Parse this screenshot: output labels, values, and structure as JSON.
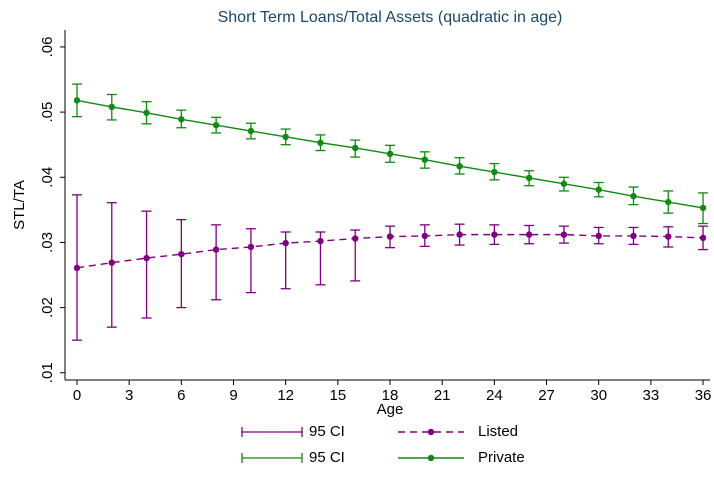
{
  "chart_data": {
    "type": "line",
    "title": "Short Term Loans/Total Assets (quadratic in age)",
    "x_label": "Age",
    "y_label": "STL/TA",
    "x": [
      0,
      2,
      4,
      6,
      8,
      10,
      12,
      14,
      16,
      18,
      20,
      22,
      24,
      26,
      28,
      30,
      32,
      34,
      36
    ],
    "xlim": [
      -0.69,
      36.4
    ],
    "xticks": [
      0,
      3,
      6,
      9,
      12,
      15,
      18,
      21,
      24,
      27,
      30,
      33,
      36
    ],
    "ylim": [
      0.00889,
      0.0626
    ],
    "yticks": [
      {
        "value": 0.01,
        "label": ".01"
      },
      {
        "value": 0.02,
        "label": ".02"
      },
      {
        "value": 0.03,
        "label": ".03"
      },
      {
        "value": 0.04,
        "label": ".04"
      },
      {
        "value": 0.05,
        "label": ".05"
      },
      {
        "value": 0.06,
        "label": ".06"
      }
    ],
    "series": [
      {
        "name": "Listed",
        "ci_name": "95 CI",
        "color": "#800080",
        "dashed": true,
        "values": [
          0.0261,
          0.0269,
          0.0276,
          0.0282,
          0.0289,
          0.0293,
          0.0299,
          0.0302,
          0.0306,
          0.0309,
          0.031,
          0.0312,
          0.0312,
          0.0312,
          0.0312,
          0.031,
          0.031,
          0.0309,
          0.0307
        ],
        "lower": [
          0.015,
          0.017,
          0.0184,
          0.02,
          0.0212,
          0.0223,
          0.0229,
          0.0235,
          0.0241,
          0.0292,
          0.0294,
          0.0296,
          0.0297,
          0.0298,
          0.0299,
          0.0298,
          0.0297,
          0.0293,
          0.0289
        ],
        "upper": [
          0.0373,
          0.0361,
          0.0348,
          0.0335,
          0.0327,
          0.0321,
          0.0316,
          0.0316,
          0.0319,
          0.0325,
          0.0327,
          0.0328,
          0.0327,
          0.0326,
          0.0325,
          0.0323,
          0.0323,
          0.0324,
          0.0325
        ]
      },
      {
        "name": "Private",
        "ci_name": "95 CI",
        "color": "#108a10",
        "dashed": false,
        "values": [
          0.0518,
          0.0508,
          0.0499,
          0.0489,
          0.048,
          0.0471,
          0.0462,
          0.0453,
          0.0445,
          0.0436,
          0.0427,
          0.0417,
          0.0408,
          0.0399,
          0.039,
          0.0381,
          0.0371,
          0.0362,
          0.0353
        ],
        "lower": [
          0.0493,
          0.0488,
          0.0482,
          0.0476,
          0.0468,
          0.0459,
          0.045,
          0.0441,
          0.0431,
          0.0423,
          0.0414,
          0.0405,
          0.0396,
          0.0387,
          0.0379,
          0.037,
          0.0358,
          0.0345,
          0.0329
        ],
        "upper": [
          0.0543,
          0.0527,
          0.0516,
          0.0503,
          0.0492,
          0.0483,
          0.0474,
          0.0465,
          0.0457,
          0.0449,
          0.0439,
          0.043,
          0.0421,
          0.041,
          0.04,
          0.0392,
          0.0385,
          0.0379,
          0.0376
        ]
      }
    ]
  }
}
